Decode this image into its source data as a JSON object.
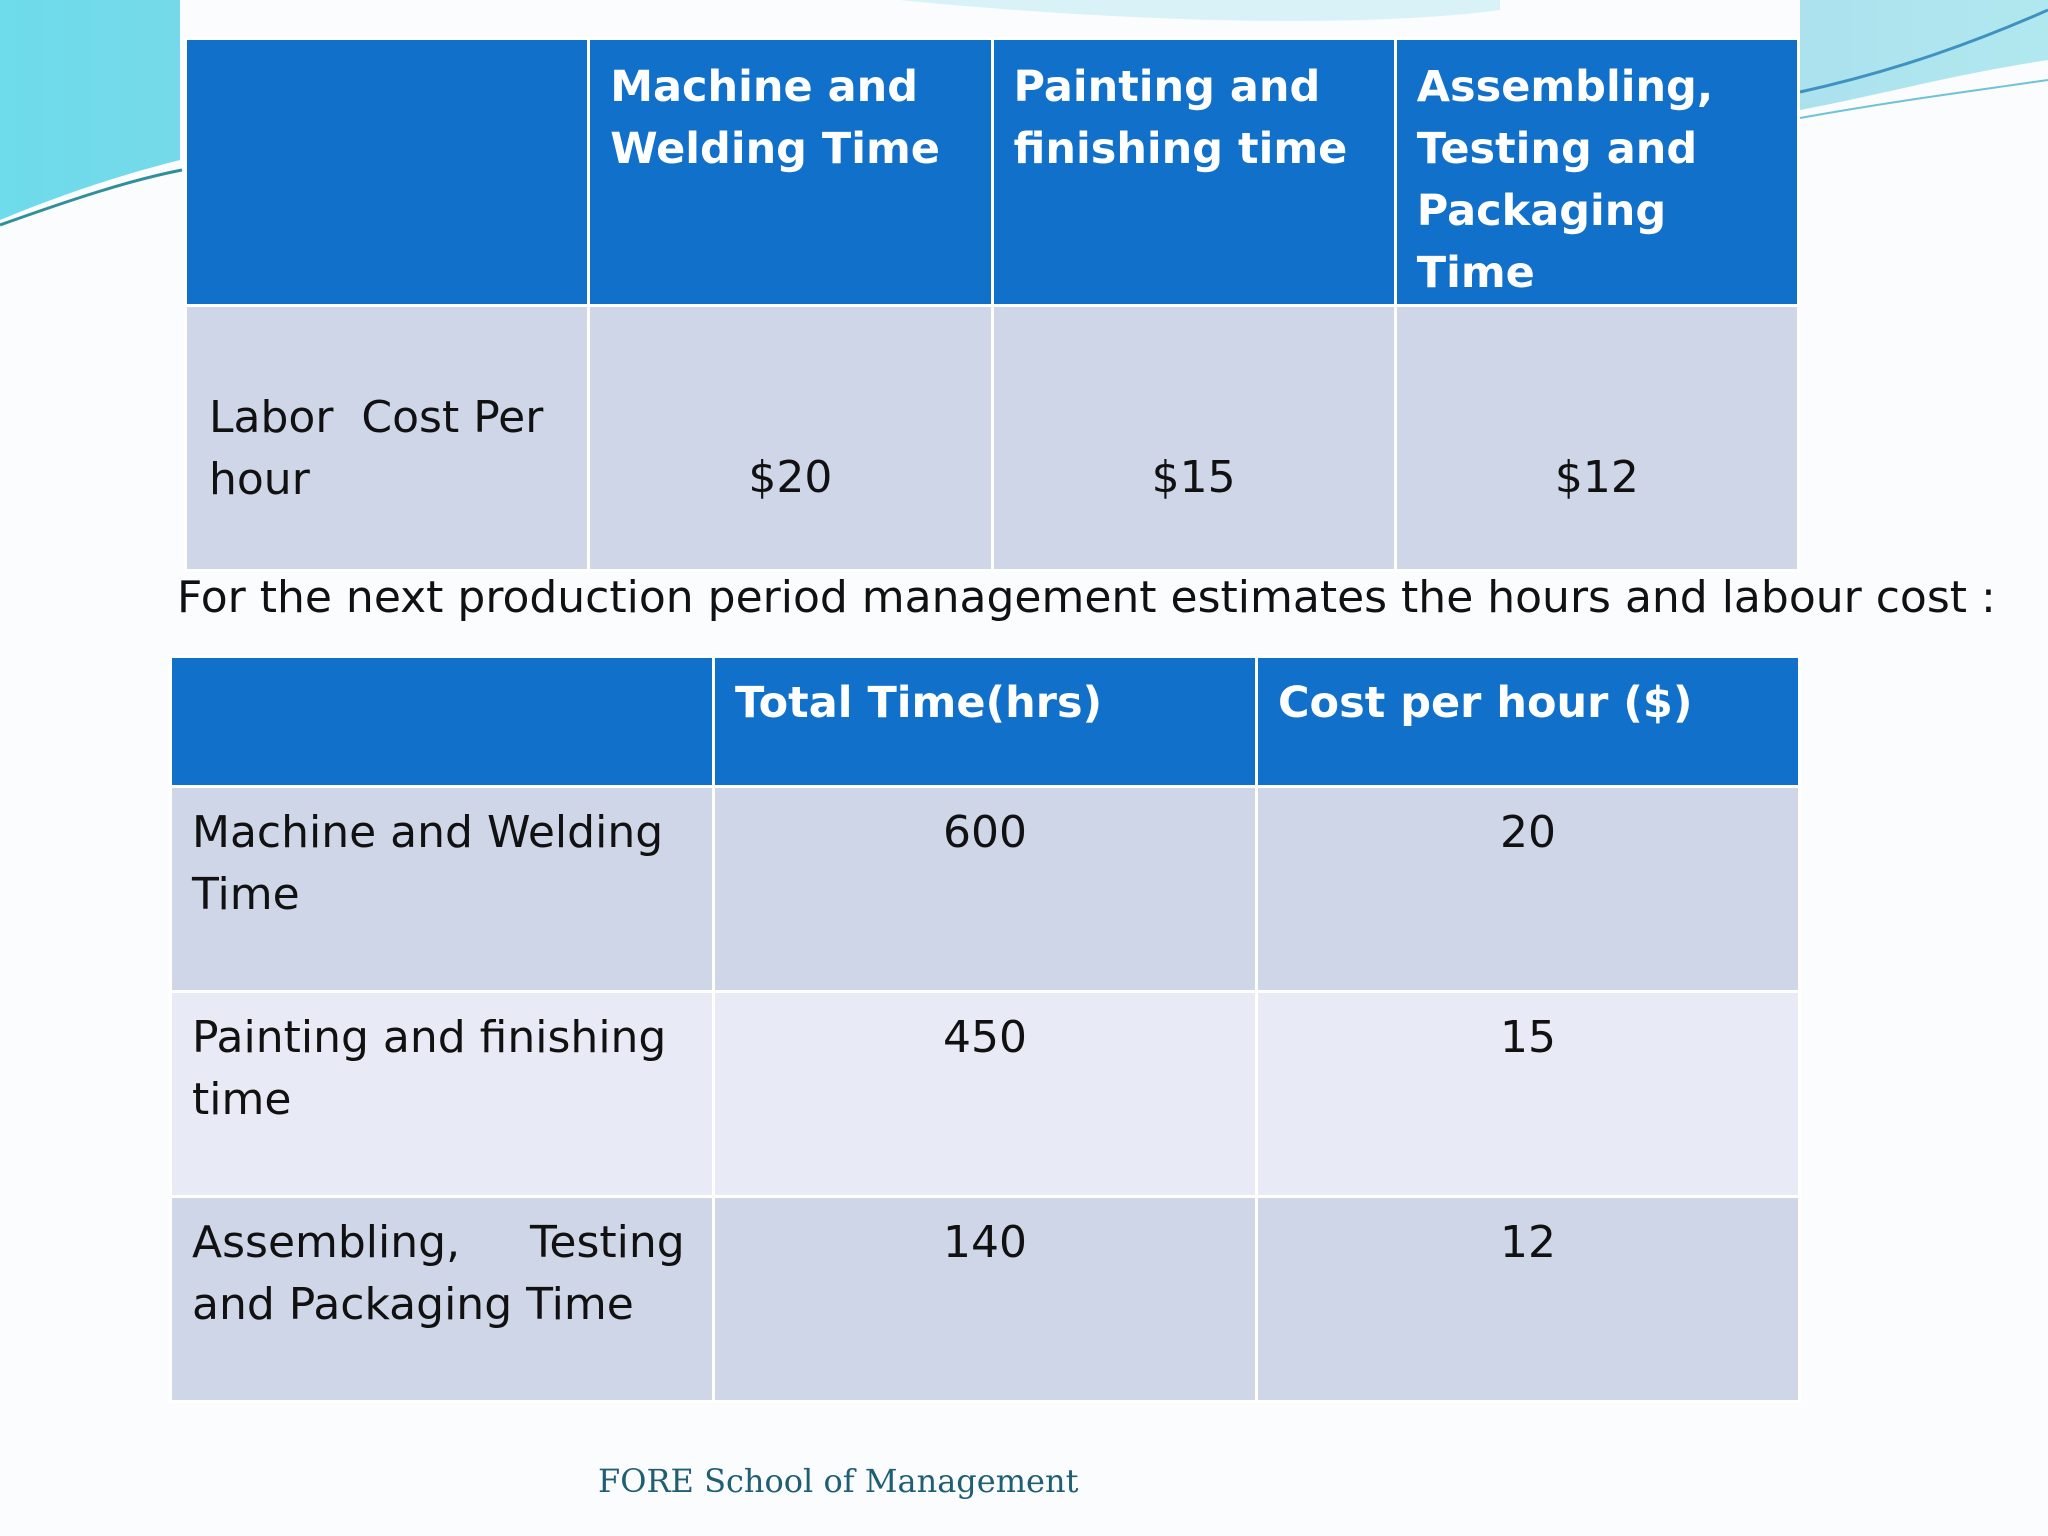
{
  "labor_table": {
    "headers": [
      "",
      "Machine and Welding Time",
      "Painting and finishing time",
      "Assembling, Testing and Packaging Time"
    ],
    "row_label": "Labor  Cost Per hour",
    "values": [
      "$20",
      "$15",
      "$12"
    ]
  },
  "caption": "For the next production period management estimates the hours and labour cost :",
  "estimate_table": {
    "headers": [
      "",
      "Total Time(hrs)",
      "Cost per hour ($)"
    ],
    "rows": [
      {
        "label": "Machine and Welding Time",
        "total_time": "600",
        "cost_per_hour": "20"
      },
      {
        "label": "Painting and finishing time",
        "total_time": "450",
        "cost_per_hour": "15"
      },
      {
        "label": "Assembling,     Testing and Packaging Time",
        "total_time": "140",
        "cost_per_hour": "12"
      }
    ]
  },
  "footer": "FORE School of Management",
  "colors": {
    "header_bg": "#1170c9",
    "row_odd": "#cfd6e8",
    "row_even": "#e8ebf5",
    "footer_text": "#1f5e73"
  }
}
